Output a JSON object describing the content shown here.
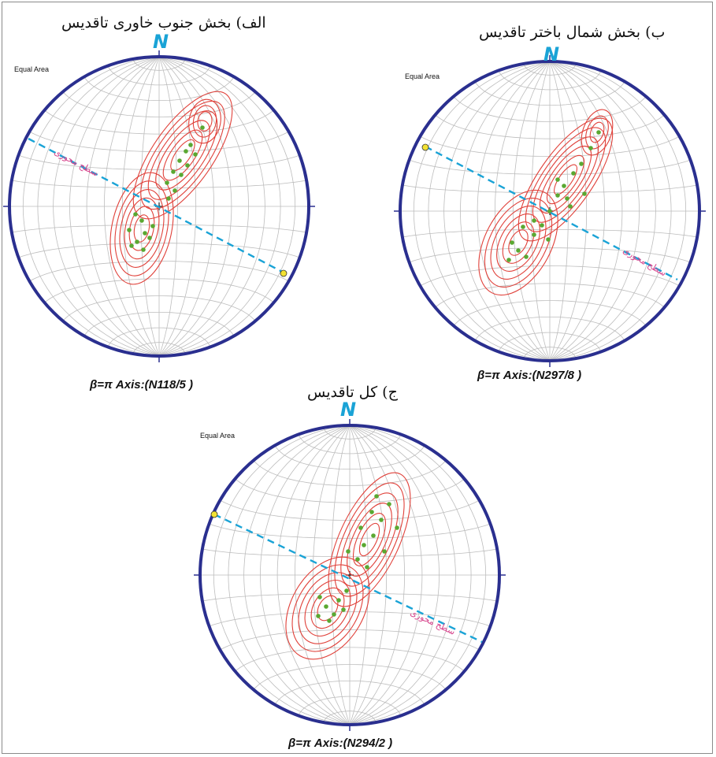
{
  "panels": [
    {
      "id": "a",
      "title": "الف) بخش جنوب خاوری تاقدیس",
      "north_label": "N",
      "projection_label": "Equal Area",
      "axial_plane_label": "سطح محوری",
      "axis_caption": "β=π Axis:(N118/5 )",
      "axis_trend": 118,
      "axis_plunge": 5
    },
    {
      "id": "b",
      "title": "ب) بخش شمال باختر تاقدیس",
      "north_label": "N",
      "projection_label": "Equal Area",
      "axial_plane_label": "سطح محوری",
      "axis_caption": "β=π Axis:(N297/8 )",
      "axis_trend": 297,
      "axis_plunge": 8
    },
    {
      "id": "c",
      "title": "ج) کل تاقدیس",
      "north_label": "N",
      "projection_label": "Equal Area",
      "axial_plane_label": "سطح محوری",
      "axis_caption": "β=π Axis:(N294/2 )",
      "axis_trend": 294,
      "axis_plunge": 2
    }
  ],
  "colors": {
    "primitive": "#2a2f8f",
    "grid": "#bdbdbd",
    "contour": "#e0413a",
    "pole": "#5aa832",
    "axial_plane": "#1aa3d6",
    "beta_axis": "#f2e233"
  }
}
